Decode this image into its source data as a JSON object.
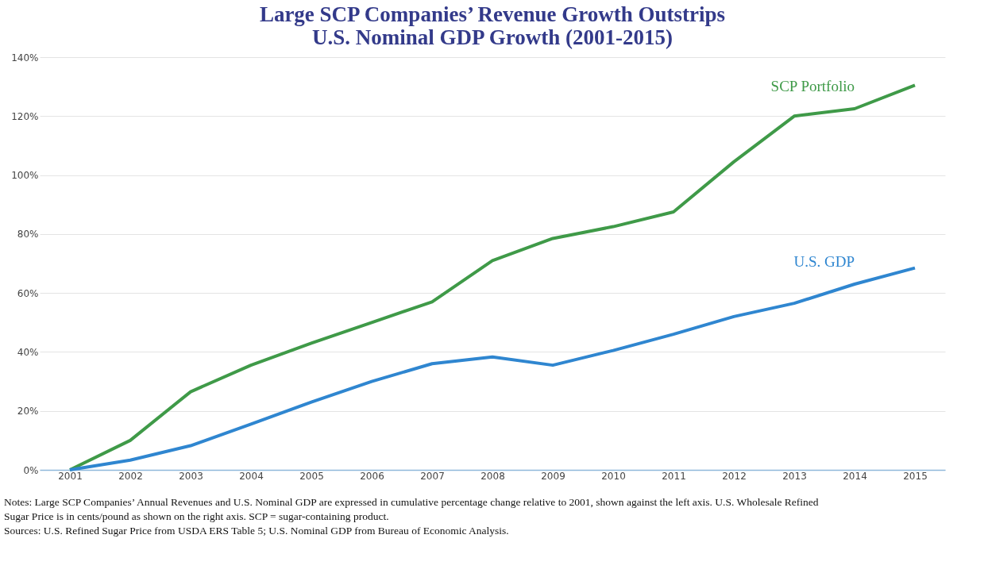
{
  "chart_data": {
    "type": "line",
    "title": [
      "Large SCP Companies’ Revenue Growth Outstrips",
      "U.S. Nominal GDP Growth (2001-2015)"
    ],
    "categories": [
      "2001",
      "2002",
      "2003",
      "2004",
      "2005",
      "2006",
      "2007",
      "2008",
      "2009",
      "2010",
      "2011",
      "2012",
      "2013",
      "2014",
      "2015"
    ],
    "series": [
      {
        "name": "SCP Portfolio",
        "color": "#3f9a48",
        "values": [
          0,
          10,
          26.5,
          35.5,
          43,
          50,
          57,
          71,
          78.5,
          82.5,
          87.5,
          104.5,
          120,
          122.5,
          130.5
        ]
      },
      {
        "name": "U.S. GDP",
        "color": "#2f86d0",
        "values": [
          0,
          3.3,
          8.2,
          15.5,
          23,
          30,
          36,
          38.3,
          35.5,
          40.5,
          46,
          52,
          56.5,
          63,
          68.5
        ]
      }
    ],
    "ylim": [
      0,
      140
    ],
    "yticks": [
      {
        "value": 0,
        "label": "0%"
      },
      {
        "value": 20,
        "label": "20%"
      },
      {
        "value": 40,
        "label": "40%"
      },
      {
        "value": 60,
        "label": "60%"
      },
      {
        "value": 80,
        "label": "80%"
      },
      {
        "value": 100,
        "label": "100%"
      },
      {
        "value": 120,
        "label": "120%"
      },
      {
        "value": 140,
        "label": "140%"
      }
    ],
    "grid": "y",
    "marker": "none",
    "line_style": "solid",
    "annotations": [
      "Notes: Large SCP Companies’ Annual Revenues and U.S. Nominal GDP are expressed in cumulative percentage change relative to 2001, shown against the left axis. U.S. Wholesale Refined Sugar Price is in cents/pound as shown on the right axis.  SCP = sugar-containing product.",
      "Sources: U.S. Refined Sugar Price from USDA ERS Table 5; U.S. Nominal GDP from Bureau of Economic Analysis."
    ]
  }
}
